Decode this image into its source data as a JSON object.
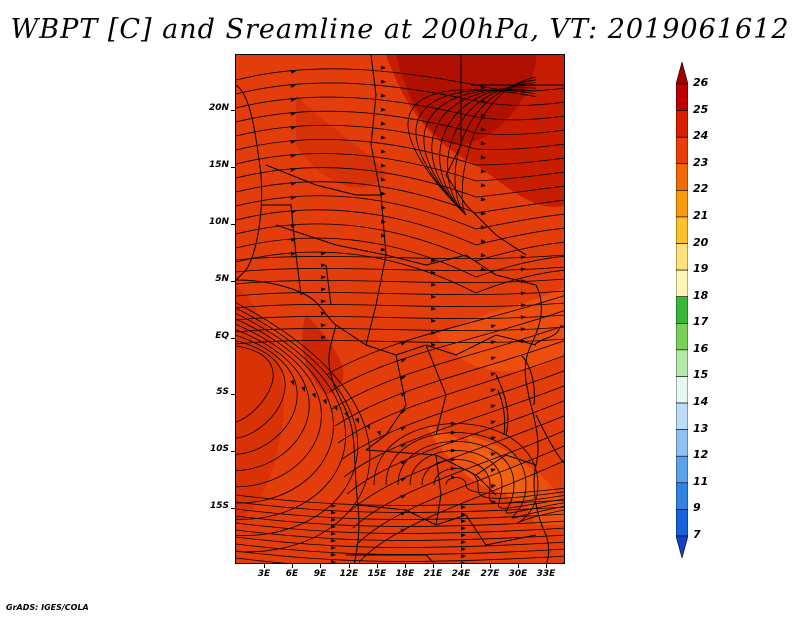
{
  "title": "WBPT [C] and Sreamline at 200hPa, VT: 2019061612",
  "credit": "GrADS: IGES/COLA",
  "axes": {
    "lat_labels": [
      "20N",
      "15N",
      "10N",
      "5N",
      "EQ",
      "5S",
      "10S",
      "15S"
    ],
    "lon_labels": [
      "3E",
      "6E",
      "9E",
      "12E",
      "15E",
      "18E",
      "21E",
      "24E",
      "27E",
      "30E",
      "33E"
    ]
  },
  "colorbar": {
    "labels": [
      "26",
      "25",
      "24",
      "23",
      "22",
      "21",
      "20",
      "19",
      "18",
      "17",
      "16",
      "15",
      "14",
      "13",
      "12",
      "11",
      "9",
      "7"
    ],
    "colors": [
      "#a50000",
      "#c00000",
      "#dc1e00",
      "#ec3c08",
      "#f26a04",
      "#f89a0a",
      "#fbc02a",
      "#fde27a",
      "#fff6b4",
      "#38b838",
      "#78d058",
      "#b4eaa8",
      "#e6f8f0",
      "#bcdcf8",
      "#8ec2f4",
      "#5aa2ec",
      "#3282e4",
      "#1462dc",
      "#1042c8"
    ]
  },
  "field_colors": {
    "background": "#e23d0a",
    "dark_north": "#b81400",
    "mid": "#cf2a04",
    "light_east": "#f25210"
  }
}
